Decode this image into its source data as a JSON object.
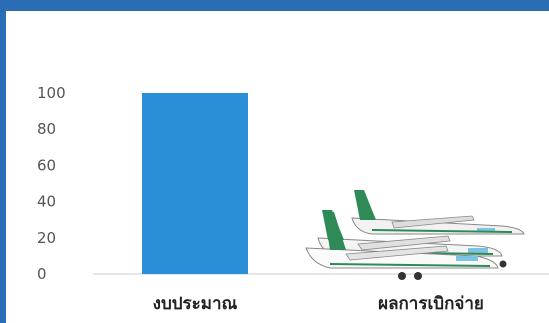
{
  "chart_data": {
    "type": "bar",
    "categories": [
      "งบประมาณ",
      "ผลการเบิกจ่าย"
    ],
    "values": [
      100,
      0
    ],
    "ylim": [
      0,
      100
    ],
    "yticks": [
      0,
      20,
      40,
      60,
      80,
      100
    ],
    "grid": false,
    "legend": "none",
    "bar_color": "#2a8fd6",
    "decoration_icon": "airplane-group-icon"
  },
  "colors": {
    "frame": "#2a6db5",
    "bar": "#2a8fd6",
    "axis": "#cccccc"
  }
}
